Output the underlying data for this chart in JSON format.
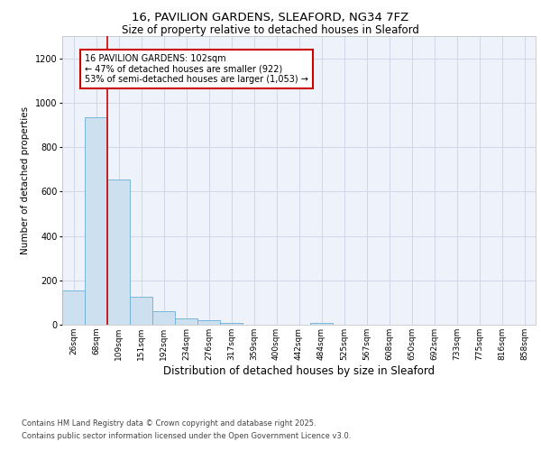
{
  "title_line1": "16, PAVILION GARDENS, SLEAFORD, NG34 7FZ",
  "title_line2": "Size of property relative to detached houses in Sleaford",
  "xlabel": "Distribution of detached houses by size in Sleaford",
  "ylabel": "Number of detached properties",
  "categories": [
    "26sqm",
    "68sqm",
    "109sqm",
    "151sqm",
    "192sqm",
    "234sqm",
    "276sqm",
    "317sqm",
    "359sqm",
    "400sqm",
    "442sqm",
    "484sqm",
    "525sqm",
    "567sqm",
    "608sqm",
    "650sqm",
    "692sqm",
    "733sqm",
    "775sqm",
    "816sqm",
    "858sqm"
  ],
  "values": [
    155,
    935,
    655,
    125,
    60,
    30,
    20,
    10,
    0,
    0,
    0,
    10,
    0,
    0,
    0,
    0,
    0,
    0,
    0,
    0,
    0
  ],
  "bar_color": "#cce0f0",
  "bar_edge_color": "#6baed6",
  "red_line_x": 1.5,
  "annotation_text": "16 PAVILION GARDENS: 102sqm\n← 47% of detached houses are smaller (922)\n53% of semi-detached houses are larger (1,053) →",
  "annotation_box_facecolor": "#ffffff",
  "annotation_box_edgecolor": "#cc0000",
  "ylim": [
    0,
    1300
  ],
  "yticks": [
    0,
    200,
    400,
    600,
    800,
    1000,
    1200
  ],
  "footer_line1": "Contains HM Land Registry data © Crown copyright and database right 2025.",
  "footer_line2": "Contains public sector information licensed under the Open Government Licence v3.0.",
  "grid_color": "#d0d8e8",
  "bg_color": "#eef2fa",
  "title1_fontsize": 9.5,
  "title2_fontsize": 8.5,
  "ylabel_fontsize": 7.5,
  "xlabel_fontsize": 8.5,
  "tick_fontsize": 6.5,
  "annot_fontsize": 7,
  "footer_fontsize": 6
}
